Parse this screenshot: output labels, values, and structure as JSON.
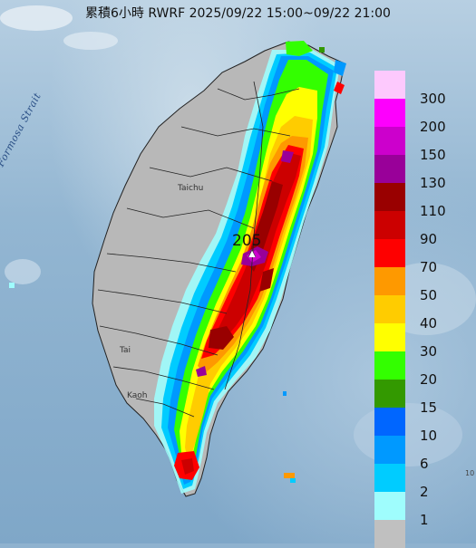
{
  "title": "累積6小時 RWRF 2025/09/22 15:00~09/22 21:00",
  "strait_label": "Formosa Strait",
  "max_value": "205",
  "city_labels": {
    "taichung": "Taichu",
    "tainan": "Tai",
    "kaohsiung": "Kaoh"
  },
  "edge_mark": "10",
  "legend": {
    "labels": [
      "300",
      "200",
      "150",
      "130",
      "110",
      "90",
      "70",
      "50",
      "40",
      "30",
      "20",
      "15",
      "10",
      "6",
      "2",
      "1"
    ],
    "colors": [
      "#fdc9fd",
      "#fd00fd",
      "#cc00cc",
      "#990099",
      "#990000",
      "#cc0000",
      "#fe0000",
      "#fe9900",
      "#ffcc00",
      "#ffff00",
      "#33ff00",
      "#339900",
      "#0066ff",
      "#0099ff",
      "#00ccff",
      "#9ffdfd",
      "#c0c0c0"
    ]
  }
}
